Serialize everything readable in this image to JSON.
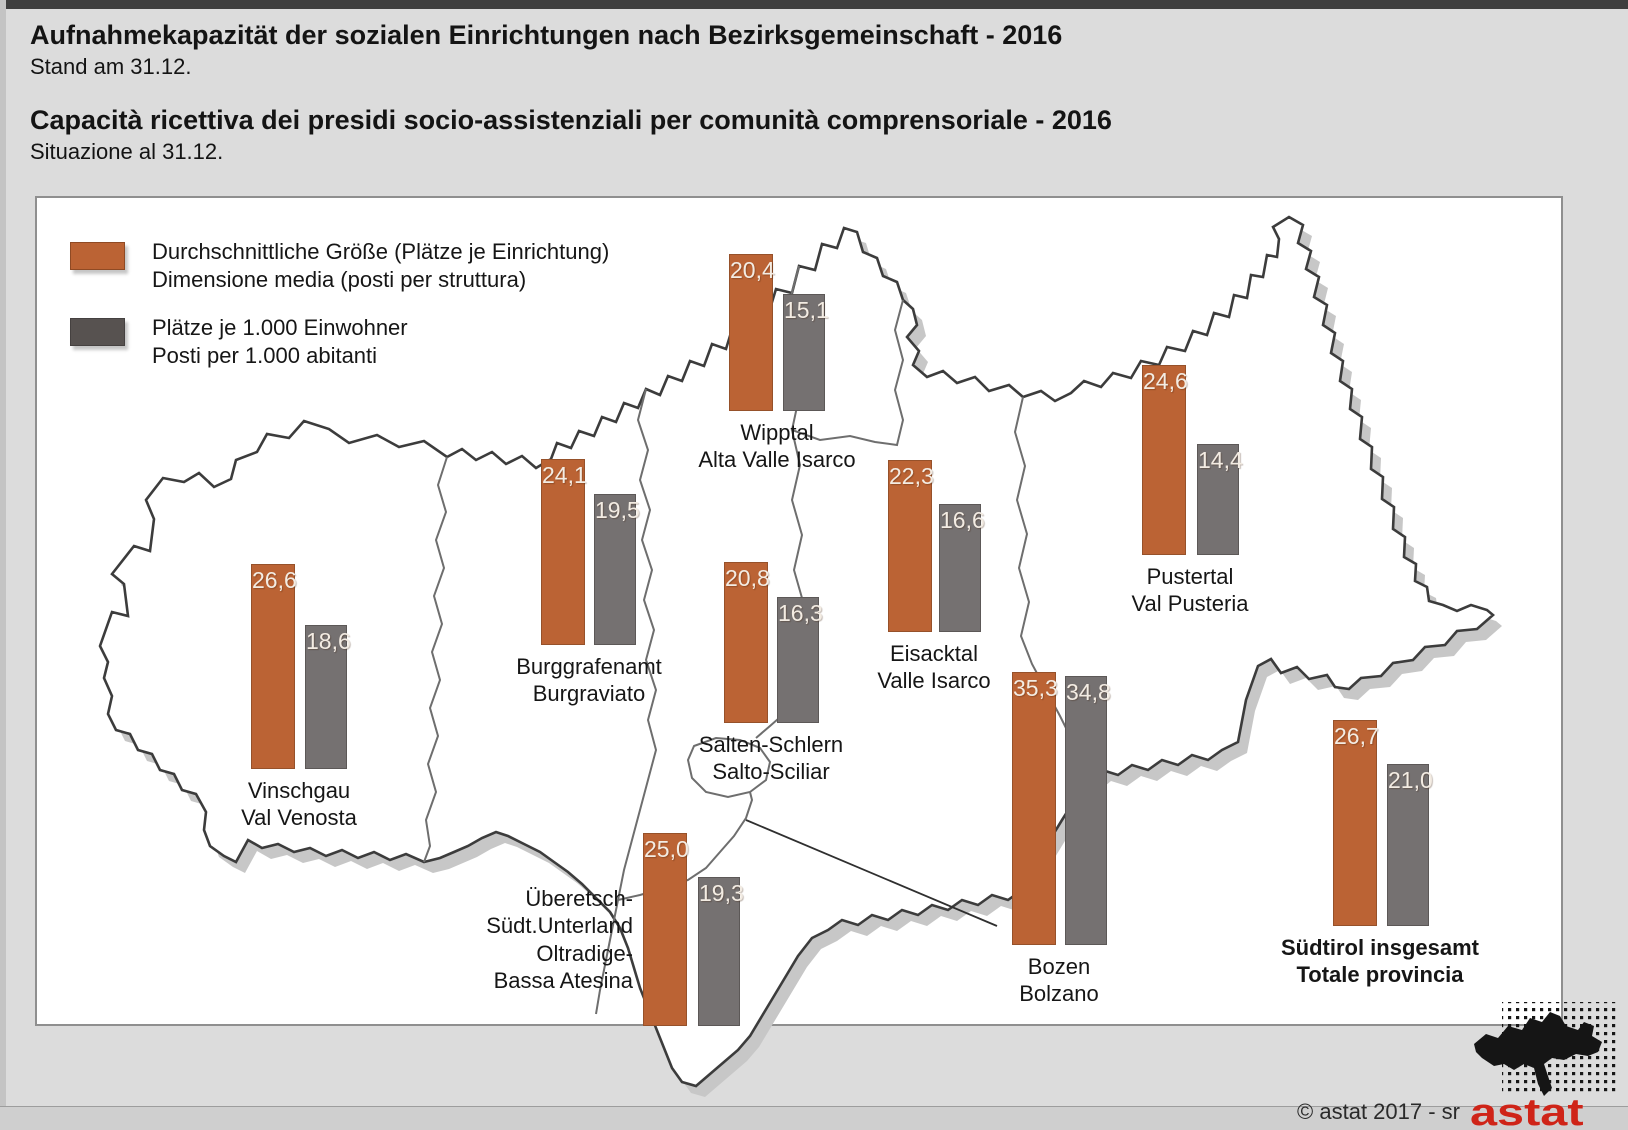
{
  "page": {
    "title_de": "Aufnahmekapazität der sozialen Einrichtungen nach Bezirksgemeinschaft - 2016",
    "subtitle_de": "Stand am 31.12.",
    "title_it": "Capacità ricettiva dei presidi socio-assistenziali per comunità comprensoriale - 2016",
    "subtitle_it": "Situazione al 31.12."
  },
  "legend": {
    "avg_size": {
      "label_de": "Durchschnittliche Größe (Plätze je Einrichtung)",
      "label_it": "Dimensione media (posti per struttura)",
      "color": "#bb6334"
    },
    "per_1000": {
      "label_de": "Plätze je 1.000 Einwohner",
      "label_it": "Posti per 1.000 abitanti",
      "color": "#575250"
    }
  },
  "regions": [
    {
      "id": "wipptal",
      "name_de": "Wipptal",
      "name_it": "Alta Valle Isarco",
      "avg_size": 20.4,
      "per_1000": 15.1
    },
    {
      "id": "pustertal",
      "name_de": "Pustertal",
      "name_it": "Val Pusteria",
      "avg_size": 24.6,
      "per_1000": 14.4
    },
    {
      "id": "burggrafenamt",
      "name_de": "Burggrafenamt",
      "name_it": "Burgraviato",
      "avg_size": 24.1,
      "per_1000": 19.5
    },
    {
      "id": "eisacktal",
      "name_de": "Eisacktal",
      "name_it": "Valle Isarco",
      "avg_size": 22.3,
      "per_1000": 16.6
    },
    {
      "id": "vinschgau",
      "name_de": "Vinschgau",
      "name_it": "Val Venosta",
      "avg_size": 26.6,
      "per_1000": 18.6
    },
    {
      "id": "salten",
      "name_de": "Salten-Schlern",
      "name_it": "Salto-Sciliar",
      "avg_size": 20.8,
      "per_1000": 16.3
    },
    {
      "id": "bozen",
      "name_de": "Bozen",
      "name_it": "Bolzano",
      "avg_size": 35.3,
      "per_1000": 34.8
    },
    {
      "id": "ueberetsch",
      "name_de": "Überetsch-Südt.Unterland",
      "name_it": "Oltradige-Bassa Atesina",
      "label_lines": [
        "Überetsch-",
        "Südt.Unterland",
        "Oltradige-",
        "Bassa Atesina"
      ],
      "avg_size": 25.0,
      "per_1000": 19.3
    },
    {
      "id": "total",
      "name_de": "Südtirol insgesamt",
      "name_it": "Totale provincia",
      "avg_size": 26.7,
      "per_1000": 21.0,
      "bold": true
    }
  ],
  "footer": {
    "copyright": "© astat 2017 - sr",
    "logo_text": "astat",
    "logo_color": "#cf2418"
  },
  "chart_data": {
    "type": "bar",
    "title": "Aufnahmekapazität der sozialen Einrichtungen nach Bezirksgemeinschaft - 2016 / Capacità ricettiva dei presidi socio-assistenziali per comunità comprensoriale - 2016",
    "subtitle": "Stand am 31.12. / Situazione al 31.12.",
    "layout_note": "grouped bars overlaid on a map of South Tyrol, one pair per district community",
    "value_format": "decimal comma, one digit (e.g. 20,4)",
    "categories": [
      "Wipptal / Alta Valle Isarco",
      "Pustertal / Val Pusteria",
      "Burggrafenamt / Burgraviato",
      "Eisacktal / Valle Isarco",
      "Vinschgau / Val Venosta",
      "Salten-Schlern / Salto-Sciliar",
      "Bozen / Bolzano",
      "Überetsch-Südt.Unterland / Oltradige-Bassa Atesina",
      "Südtirol insgesamt / Totale provincia"
    ],
    "series": [
      {
        "name": "Durchschnittliche Größe (Plätze je Einrichtung) / Dimensione media (posti per struttura)",
        "color": "#bb6334",
        "values": [
          20.4,
          24.6,
          24.1,
          22.3,
          26.6,
          20.8,
          35.3,
          25.0,
          26.7
        ]
      },
      {
        "name": "Plätze je 1.000 Einwohner / Posti per 1.000 abitanti",
        "color": "#757171",
        "values": [
          15.1,
          14.4,
          19.5,
          16.6,
          18.6,
          16.3,
          34.8,
          19.3,
          21.0
        ]
      }
    ]
  }
}
